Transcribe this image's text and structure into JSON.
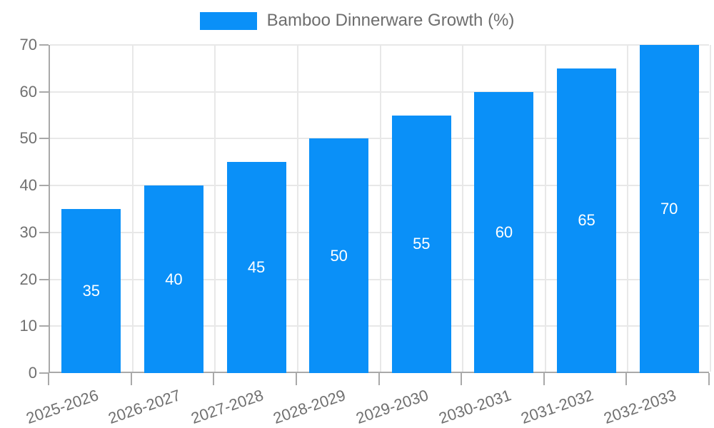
{
  "chart_data": {
    "type": "bar",
    "title": "Bamboo Dinnerware Growth (%)",
    "legend": {
      "label": "Bamboo Dinnerware Growth (%)",
      "position": "top"
    },
    "categories": [
      "2025-2026",
      "2026-2027",
      "2027-2028",
      "2028-2029",
      "2029-2030",
      "2030-2031",
      "2031-2032",
      "2032-2033"
    ],
    "values": [
      35,
      40,
      45,
      50,
      55,
      60,
      65,
      70
    ],
    "xlabel": "",
    "ylabel": "",
    "ylim": [
      0,
      70
    ],
    "yticks": [
      0,
      10,
      20,
      30,
      40,
      50,
      60,
      70
    ],
    "grid": true,
    "data_labels": "inside-center",
    "x_tick_rotation_deg": -19
  },
  "colors": {
    "bar": "#0a90f8",
    "grid": "#e8e8e8",
    "axis": "#a9a9a9",
    "tick-text": "#707070",
    "legend-text": "#6e6e6e",
    "bar-label": "#ffffff",
    "background": "#ffffff"
  }
}
